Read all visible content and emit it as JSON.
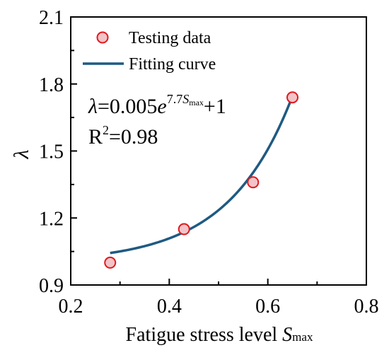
{
  "chart_data": {
    "type": "scatter",
    "xlabel": "Fatigue stress level ",
    "xlabel_symbol": "S",
    "xlabel_subscript": "max",
    "ylabel": "λ",
    "xlim": [
      0.2,
      0.8
    ],
    "ylim": [
      0.9,
      2.1
    ],
    "x_ticks": [
      0.2,
      0.4,
      0.6,
      0.8
    ],
    "x_tick_labels": [
      "0.2",
      "0.4",
      "0.6",
      "0.8"
    ],
    "y_ticks": [
      0.9,
      1.2,
      1.5,
      1.8,
      2.1
    ],
    "y_tick_labels": [
      "0.9",
      "1.2",
      "1.5",
      "1.8",
      "2.1"
    ],
    "grid": false,
    "legend_position": "top-left",
    "series": [
      {
        "name": "Testing data",
        "kind": "scatter",
        "x": [
          0.28,
          0.43,
          0.57,
          0.65
        ],
        "y": [
          1.0,
          1.15,
          1.36,
          1.74
        ],
        "marker_fill": "#f2c4c8",
        "marker_edge": "#e0191f"
      },
      {
        "name": "Fitting curve",
        "kind": "line",
        "equation": {
          "a": 0.005,
          "b": 7.7,
          "c": 1
        },
        "x_range": [
          0.28,
          0.65
        ],
        "color": "#1f5a82"
      }
    ],
    "annotations": {
      "equation": {
        "lhs": "λ",
        "eq_coef": "=0.005",
        "base": "e",
        "exponent": "7.7",
        "exp_symbol": "S",
        "exp_subscript": "max",
        "tail": "+1"
      },
      "r2": {
        "prefix": "R",
        "superscript": "2",
        "value": "=0.98"
      }
    }
  }
}
